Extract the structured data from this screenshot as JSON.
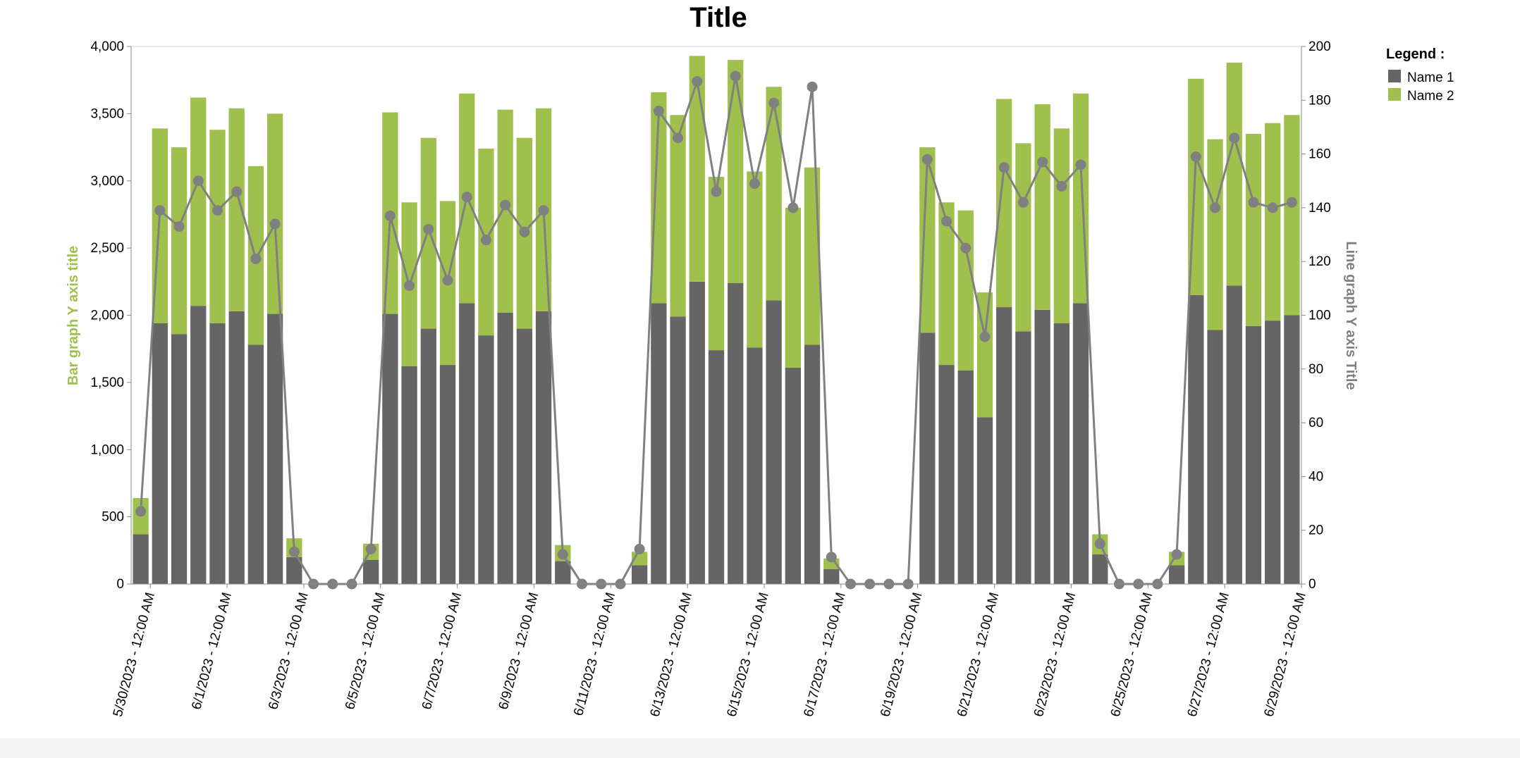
{
  "chart_data": {
    "type": "bar",
    "title": "Title",
    "ylabel_left": "Bar graph Y axis title",
    "ylabel_right": "Line graph Y axis Title",
    "legend_title": "Legend :",
    "legend_position": "top-right",
    "ylim_left": [
      0,
      4000
    ],
    "ylim_right": [
      0,
      200
    ],
    "yticks_left": [
      "0",
      "500",
      "1,000",
      "1,500",
      "2,000",
      "2,500",
      "3,000",
      "3,500",
      "4,000"
    ],
    "yticks_right": [
      "0",
      "20",
      "40",
      "60",
      "80",
      "100",
      "120",
      "140",
      "160",
      "180",
      "200"
    ],
    "x_tick_labels": [
      "5/30/2023 - 12:00 AM",
      "6/1/2023 - 12:00 AM",
      "6/3/2023 - 12:00 AM",
      "6/5/2023 - 12:00 AM",
      "6/7/2023 - 12:00 AM",
      "6/9/2023 - 12:00 AM",
      "6/11/2023 - 12:00 AM",
      "6/13/2023 - 12:00 AM",
      "6/15/2023 - 12:00 AM",
      "6/17/2023 - 12:00 AM",
      "6/19/2023 - 12:00 AM",
      "6/21/2023 - 12:00 AM",
      "6/23/2023 - 12:00 AM",
      "6/25/2023 - 12:00 AM",
      "6/27/2023 - 12:00 AM",
      "6/29/2023 - 12:00 AM"
    ],
    "colors": {
      "name1": "#656565",
      "name2": "#a0c04e",
      "line": "#808080"
    },
    "series": [
      {
        "name": "Name 1",
        "kind": "bar",
        "values": [
          370,
          1940,
          1860,
          2070,
          1940,
          2030,
          1780,
          2010,
          200,
          0,
          0,
          0,
          180,
          2010,
          1620,
          1900,
          1630,
          2090,
          1850,
          2020,
          1900,
          2030,
          170,
          0,
          0,
          0,
          140,
          2090,
          1990,
          2250,
          1740,
          2240,
          1760,
          2110,
          1610,
          1780,
          110,
          0,
          0,
          0,
          0,
          1870,
          1630,
          1590,
          1240,
          2060,
          1880,
          2040,
          1940,
          2090,
          220,
          0,
          0,
          0,
          140,
          2150,
          1890,
          2220,
          1920,
          1960,
          2000
        ]
      },
      {
        "name": "Name 2",
        "kind": "bar",
        "values": [
          270,
          1450,
          1390,
          1550,
          1440,
          1510,
          1330,
          1490,
          140,
          0,
          0,
          0,
          120,
          1500,
          1220,
          1420,
          1220,
          1560,
          1390,
          1510,
          1420,
          1510,
          120,
          0,
          0,
          0,
          100,
          1570,
          1500,
          1680,
          1290,
          1660,
          1310,
          1590,
          1190,
          1320,
          80,
          0,
          0,
          0,
          0,
          1380,
          1210,
          1190,
          930,
          1550,
          1400,
          1530,
          1450,
          1560,
          150,
          0,
          0,
          0,
          100,
          1610,
          1420,
          1660,
          1430,
          1470,
          1490
        ]
      },
      {
        "name": "line",
        "kind": "line",
        "axis": "right",
        "values": [
          27,
          139,
          133,
          150,
          139,
          146,
          121,
          134,
          12,
          0,
          0,
          0,
          13,
          137,
          111,
          132,
          113,
          144,
          128,
          141,
          131,
          139,
          11,
          0,
          0,
          0,
          13,
          176,
          166,
          187,
          146,
          189,
          149,
          179,
          140,
          185,
          10,
          0,
          0,
          0,
          0,
          158,
          135,
          125,
          92,
          155,
          142,
          157,
          148,
          156,
          15,
          0,
          0,
          0,
          11,
          159,
          140,
          166,
          142,
          140,
          142
        ]
      }
    ]
  }
}
